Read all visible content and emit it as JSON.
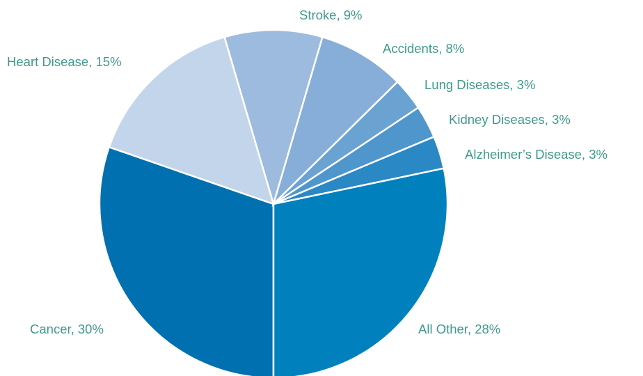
{
  "chart_data": {
    "type": "pie",
    "labels": [
      "Cancer, 30%",
      "Heart Disease, 15%",
      "Stroke, 9%",
      "Accidents, 8%",
      "Lung Diseases, 3%",
      "Kidney Diseases, 3%",
      "Alzheimer’s Disease, 3%",
      "All Other, 28%"
    ],
    "values": [
      30,
      15,
      9,
      8,
      3,
      3,
      3,
      28
    ],
    "colors": [
      "#0070b0",
      "#c3d5ea",
      "#9dbbdf",
      "#86aed8",
      "#6aa2d1",
      "#4f96cc",
      "#2a88c4",
      "#0080bd"
    ]
  }
}
